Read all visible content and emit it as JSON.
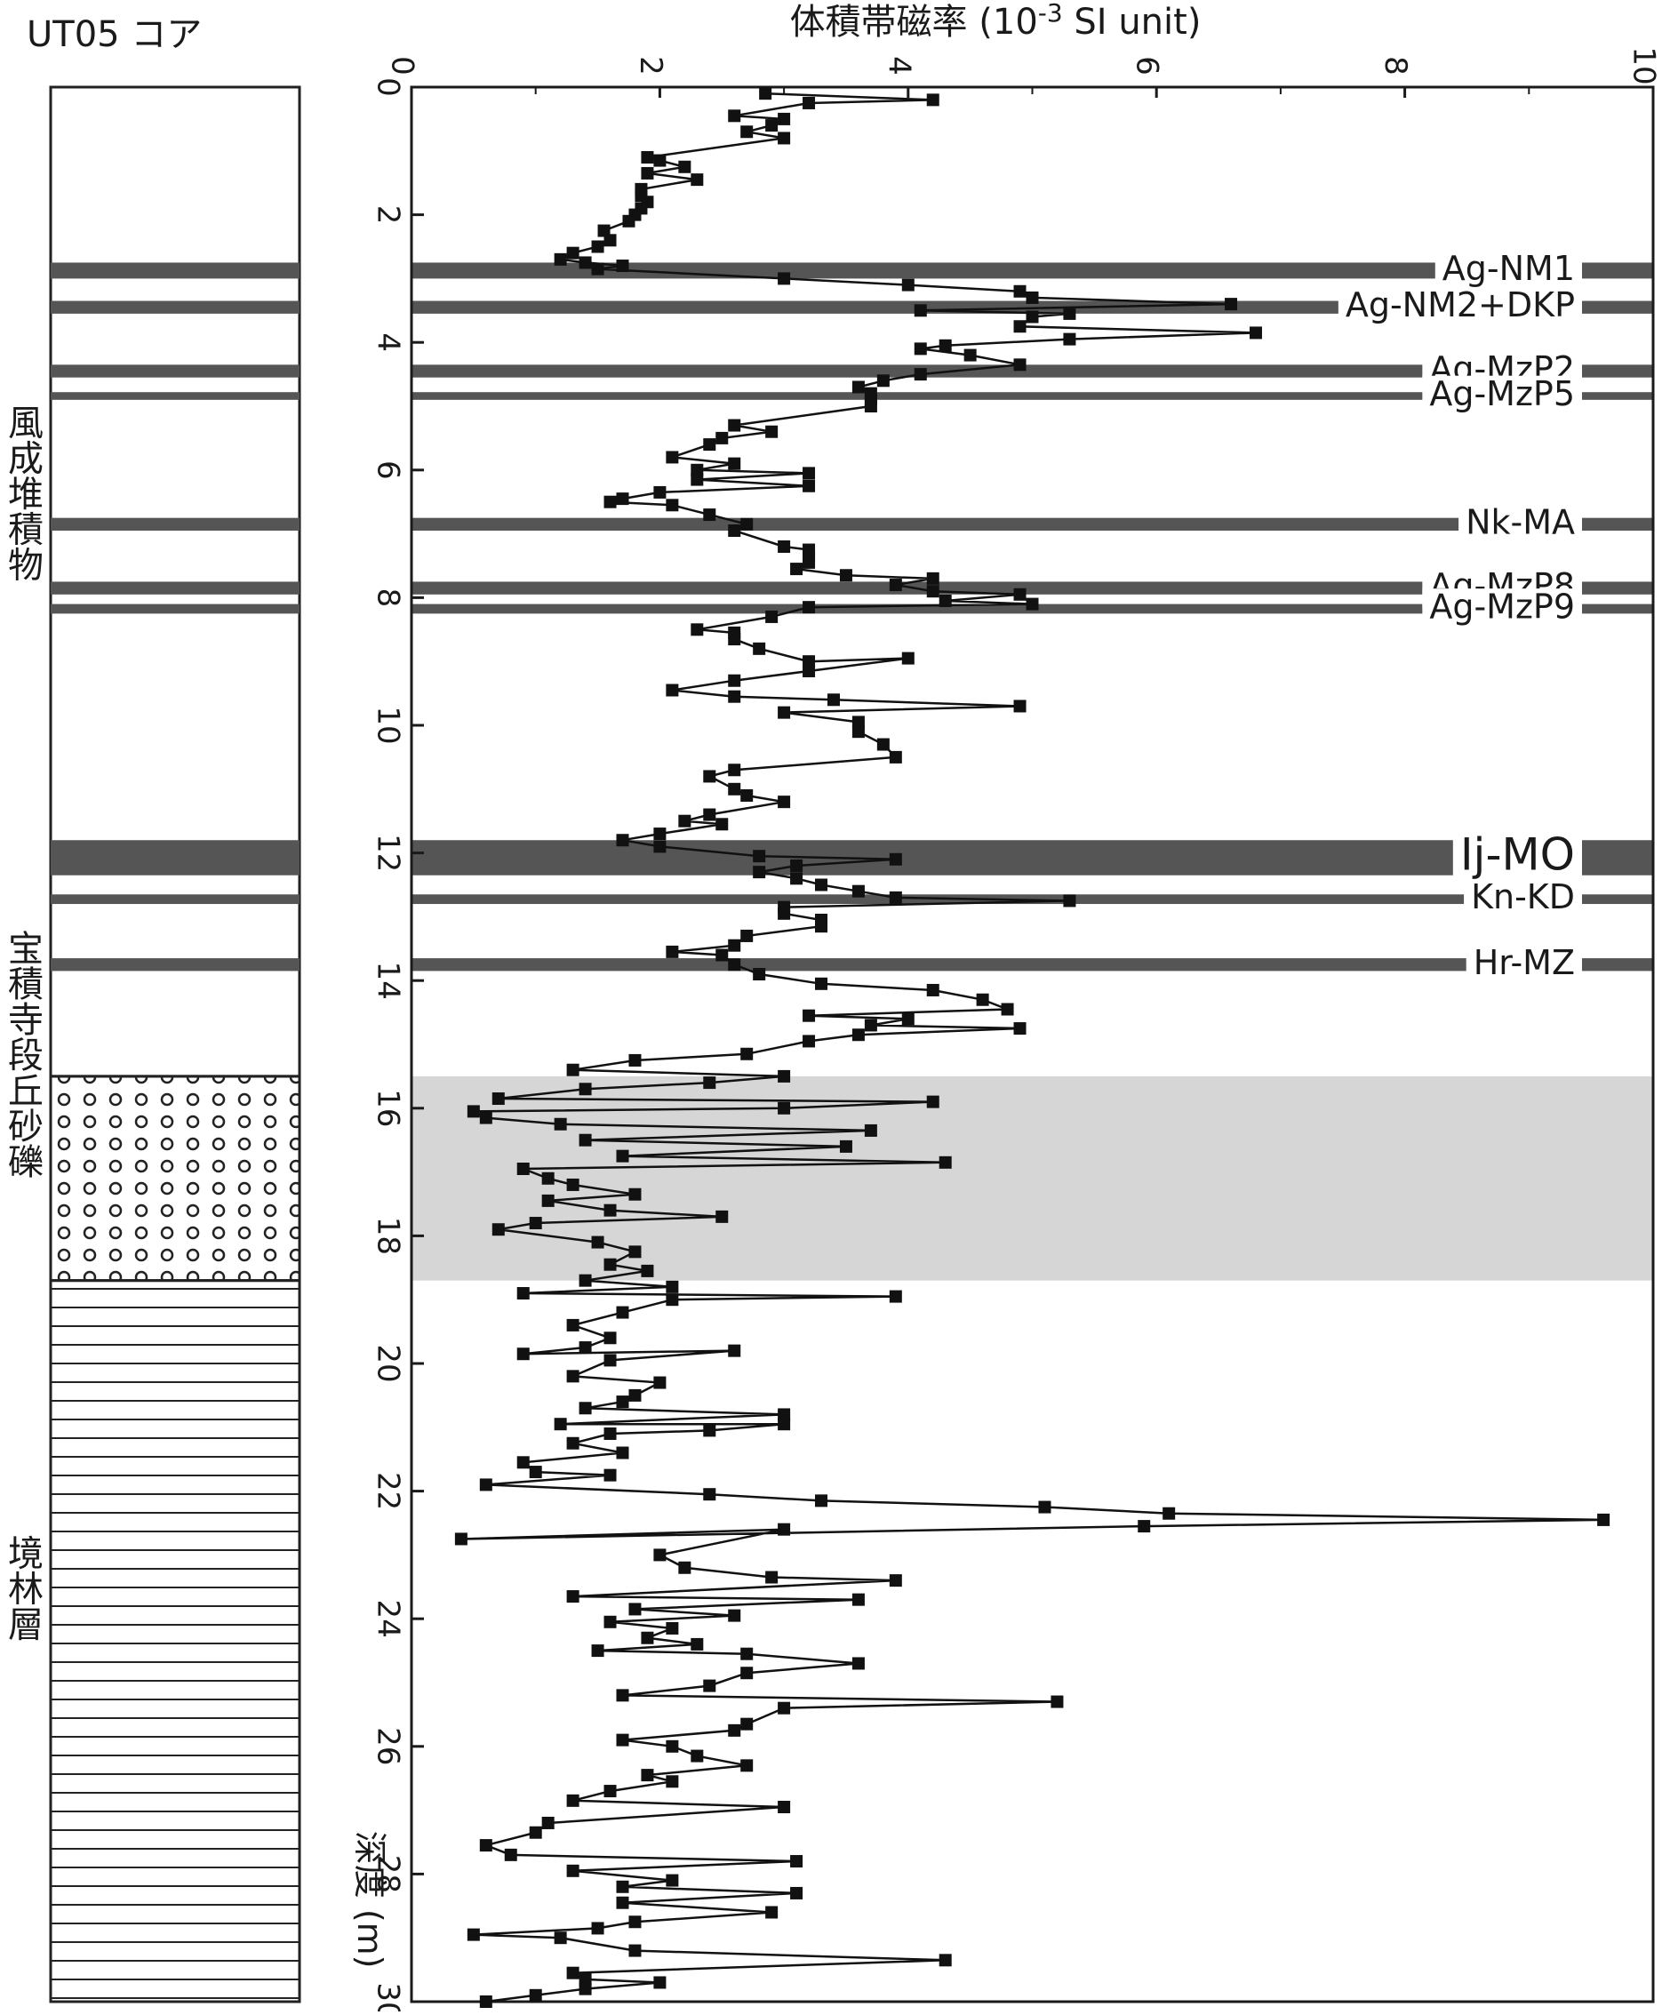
{
  "header": {
    "core_name": "UT05 コア",
    "x_axis_title": "体積帯磁率 (10",
    "x_axis_exp": "-3",
    "x_axis_unit": " SI unit)",
    "y_axis_title": "深度 (m)"
  },
  "strat_units": [
    {
      "label": "風成堆積物",
      "top": 0,
      "bottom": 15.5,
      "pattern": "blank"
    },
    {
      "label": "宝積寺段丘砂礫",
      "top": 15.5,
      "bottom": 18.7,
      "pattern": "circles"
    },
    {
      "label": "境林層",
      "top": 18.7,
      "bottom": 30,
      "pattern": "lines"
    }
  ],
  "chart_data": {
    "type": "line",
    "orientation": "depth-down",
    "x_label": "体積帯磁率 (10-3 SI unit)",
    "y_label": "深度 (m)",
    "xlim": [
      0,
      10
    ],
    "ylim": [
      0,
      30
    ],
    "x_ticks": [
      "0",
      "2",
      "4",
      "6",
      "8",
      "10"
    ],
    "y_ticks": [
      "0",
      "2",
      "4",
      "6",
      "8",
      "10",
      "12",
      "14",
      "16",
      "18",
      "20",
      "22",
      "24",
      "26",
      "28",
      "30"
    ],
    "gravel_interval": [
      15.5,
      18.7
    ],
    "tephra_layers": [
      {
        "name": "Ag-NM1",
        "top": 2.75,
        "bottom": 3.0
      },
      {
        "name": "Ag-NM2+DKP",
        "top": 3.35,
        "bottom": 3.55
      },
      {
        "name": "Ag-MzP2",
        "top": 4.35,
        "bottom": 4.55
      },
      {
        "name": "Ag-MzP5",
        "top": 4.78,
        "bottom": 4.9
      },
      {
        "name": "Nk-MA",
        "top": 6.75,
        "bottom": 6.95
      },
      {
        "name": "Ag-MzP8",
        "top": 7.75,
        "bottom": 7.95
      },
      {
        "name": "Ag-MzP9",
        "top": 8.1,
        "bottom": 8.25
      },
      {
        "name": "Ij-MO",
        "top": 11.8,
        "bottom": 12.35
      },
      {
        "name": "Kn-KD",
        "top": 12.65,
        "bottom": 12.8
      },
      {
        "name": "Hr-MZ",
        "top": 13.65,
        "bottom": 13.85
      }
    ],
    "series": [
      {
        "points": [
          [
            2.85,
            0.1
          ],
          [
            4.2,
            0.2
          ],
          [
            3.2,
            0.25
          ],
          [
            2.6,
            0.45
          ],
          [
            3.0,
            0.5
          ],
          [
            2.9,
            0.6
          ],
          [
            2.7,
            0.7
          ],
          [
            3.0,
            0.8
          ],
          [
            1.9,
            1.1
          ],
          [
            2.0,
            1.15
          ],
          [
            2.2,
            1.25
          ],
          [
            1.9,
            1.35
          ],
          [
            2.3,
            1.45
          ],
          [
            1.85,
            1.6
          ],
          [
            1.85,
            1.7
          ],
          [
            1.9,
            1.8
          ],
          [
            1.85,
            1.9
          ],
          [
            1.8,
            2.0
          ],
          [
            1.75,
            2.1
          ],
          [
            1.55,
            2.25
          ],
          [
            1.6,
            2.4
          ],
          [
            1.5,
            2.5
          ],
          [
            1.3,
            2.6
          ],
          [
            1.2,
            2.7
          ],
          [
            1.4,
            2.75
          ],
          [
            1.7,
            2.8
          ],
          [
            1.5,
            2.85
          ],
          [
            3.0,
            3.0
          ],
          [
            4.0,
            3.1
          ],
          [
            4.9,
            3.2
          ],
          [
            5.0,
            3.3
          ],
          [
            6.6,
            3.4
          ],
          [
            4.1,
            3.5
          ],
          [
            5.3,
            3.55
          ],
          [
            5.0,
            3.6
          ],
          [
            4.9,
            3.75
          ],
          [
            6.8,
            3.85
          ],
          [
            5.3,
            3.95
          ],
          [
            4.3,
            4.05
          ],
          [
            4.1,
            4.1
          ],
          [
            4.5,
            4.2
          ],
          [
            4.9,
            4.35
          ],
          [
            4.1,
            4.5
          ],
          [
            3.8,
            4.6
          ],
          [
            3.6,
            4.7
          ],
          [
            3.7,
            4.8
          ],
          [
            3.7,
            4.9
          ],
          [
            3.7,
            5.0
          ],
          [
            2.6,
            5.3
          ],
          [
            2.9,
            5.4
          ],
          [
            2.5,
            5.5
          ],
          [
            2.4,
            5.6
          ],
          [
            2.1,
            5.8
          ],
          [
            2.6,
            5.9
          ],
          [
            2.3,
            6.0
          ],
          [
            3.2,
            6.05
          ],
          [
            2.3,
            6.15
          ],
          [
            3.2,
            6.25
          ],
          [
            2.0,
            6.35
          ],
          [
            1.7,
            6.45
          ],
          [
            1.6,
            6.5
          ],
          [
            2.1,
            6.55
          ],
          [
            2.4,
            6.7
          ],
          [
            2.7,
            6.85
          ],
          [
            2.6,
            6.95
          ],
          [
            3.0,
            7.2
          ],
          [
            3.2,
            7.25
          ],
          [
            3.2,
            7.35
          ],
          [
            3.2,
            7.45
          ],
          [
            3.1,
            7.55
          ],
          [
            3.5,
            7.65
          ],
          [
            4.2,
            7.7
          ],
          [
            3.9,
            7.8
          ],
          [
            4.2,
            7.9
          ],
          [
            4.9,
            7.95
          ],
          [
            4.3,
            8.05
          ],
          [
            5.0,
            8.1
          ],
          [
            3.2,
            8.15
          ],
          [
            2.9,
            8.3
          ],
          [
            2.3,
            8.5
          ],
          [
            2.6,
            8.55
          ],
          [
            2.6,
            8.65
          ],
          [
            2.8,
            8.8
          ],
          [
            3.2,
            9.0
          ],
          [
            4.0,
            8.95
          ],
          [
            3.2,
            9.15
          ],
          [
            2.6,
            9.3
          ],
          [
            2.1,
            9.45
          ],
          [
            2.6,
            9.55
          ],
          [
            3.4,
            9.6
          ],
          [
            4.9,
            9.7
          ],
          [
            3.0,
            9.8
          ],
          [
            3.6,
            9.95
          ],
          [
            3.6,
            10.1
          ],
          [
            3.8,
            10.3
          ],
          [
            3.9,
            10.5
          ],
          [
            2.6,
            10.7
          ],
          [
            2.4,
            10.8
          ],
          [
            2.6,
            11.0
          ],
          [
            2.7,
            11.1
          ],
          [
            3.0,
            11.2
          ],
          [
            2.4,
            11.4
          ],
          [
            2.2,
            11.5
          ],
          [
            2.5,
            11.55
          ],
          [
            2.0,
            11.7
          ],
          [
            1.7,
            11.8
          ],
          [
            2.0,
            11.9
          ],
          [
            2.8,
            12.05
          ],
          [
            3.9,
            12.1
          ],
          [
            3.1,
            12.2
          ],
          [
            2.8,
            12.3
          ],
          [
            3.1,
            12.4
          ],
          [
            3.3,
            12.5
          ],
          [
            3.6,
            12.6
          ],
          [
            3.9,
            12.7
          ],
          [
            5.3,
            12.75
          ],
          [
            3.0,
            12.85
          ],
          [
            3.0,
            12.95
          ],
          [
            3.3,
            13.05
          ],
          [
            3.3,
            13.15
          ],
          [
            2.7,
            13.3
          ],
          [
            2.6,
            13.45
          ],
          [
            2.1,
            13.55
          ],
          [
            2.5,
            13.6
          ],
          [
            2.6,
            13.75
          ],
          [
            2.8,
            13.9
          ],
          [
            3.3,
            14.05
          ],
          [
            4.2,
            14.15
          ],
          [
            4.6,
            14.3
          ],
          [
            4.8,
            14.45
          ],
          [
            3.2,
            14.55
          ],
          [
            4.0,
            14.6
          ],
          [
            3.7,
            14.7
          ],
          [
            4.9,
            14.75
          ],
          [
            3.6,
            14.85
          ],
          [
            3.2,
            14.95
          ],
          [
            2.7,
            15.15
          ],
          [
            1.8,
            15.25
          ],
          [
            1.3,
            15.4
          ],
          [
            3.0,
            15.5
          ],
          [
            2.4,
            15.6
          ],
          [
            1.4,
            15.7
          ],
          [
            0.7,
            15.85
          ],
          [
            4.2,
            15.9
          ],
          [
            3.0,
            16.0
          ],
          [
            0.5,
            16.05
          ],
          [
            0.6,
            16.15
          ],
          [
            1.2,
            16.25
          ],
          [
            3.7,
            16.35
          ],
          [
            1.4,
            16.5
          ],
          [
            3.5,
            16.6
          ],
          [
            1.7,
            16.75
          ],
          [
            4.3,
            16.85
          ],
          [
            0.9,
            16.95
          ],
          [
            1.1,
            17.1
          ],
          [
            1.3,
            17.2
          ],
          [
            1.8,
            17.35
          ],
          [
            1.1,
            17.45
          ],
          [
            1.6,
            17.6
          ],
          [
            2.5,
            17.7
          ],
          [
            1.0,
            17.8
          ],
          [
            0.7,
            17.9
          ],
          [
            1.5,
            18.1
          ],
          [
            1.8,
            18.25
          ],
          [
            1.6,
            18.45
          ],
          [
            1.9,
            18.55
          ],
          [
            1.4,
            18.7
          ],
          [
            2.1,
            18.8
          ],
          [
            0.9,
            18.9
          ],
          [
            3.9,
            18.95
          ],
          [
            2.1,
            19.0
          ],
          [
            1.7,
            19.2
          ],
          [
            1.3,
            19.4
          ],
          [
            1.6,
            19.6
          ],
          [
            1.4,
            19.75
          ],
          [
            0.9,
            19.85
          ],
          [
            2.6,
            19.8
          ],
          [
            1.6,
            19.95
          ],
          [
            1.3,
            20.2
          ],
          [
            2.0,
            20.3
          ],
          [
            1.8,
            20.5
          ],
          [
            1.7,
            20.6
          ],
          [
            1.4,
            20.7
          ],
          [
            3.0,
            20.8
          ],
          [
            1.2,
            20.95
          ],
          [
            3.0,
            20.95
          ],
          [
            2.4,
            21.05
          ],
          [
            1.6,
            21.1
          ],
          [
            1.3,
            21.25
          ],
          [
            1.7,
            21.4
          ],
          [
            0.9,
            21.55
          ],
          [
            1.0,
            21.7
          ],
          [
            1.6,
            21.75
          ],
          [
            0.6,
            21.9
          ],
          [
            2.4,
            22.05
          ],
          [
            3.3,
            22.15
          ],
          [
            5.1,
            22.25
          ],
          [
            6.1,
            22.35
          ],
          [
            9.6,
            22.45
          ],
          [
            5.9,
            22.55
          ],
          [
            0.4,
            22.75
          ],
          [
            3.0,
            22.6
          ],
          [
            2.0,
            23.0
          ],
          [
            2.2,
            23.2
          ],
          [
            2.9,
            23.35
          ],
          [
            3.9,
            23.4
          ],
          [
            1.3,
            23.65
          ],
          [
            3.6,
            23.7
          ],
          [
            1.8,
            23.85
          ],
          [
            2.6,
            23.95
          ],
          [
            1.6,
            24.05
          ],
          [
            2.1,
            24.15
          ],
          [
            1.9,
            24.3
          ],
          [
            2.3,
            24.4
          ],
          [
            1.5,
            24.5
          ],
          [
            2.7,
            24.55
          ],
          [
            3.6,
            24.7
          ],
          [
            2.7,
            24.85
          ],
          [
            2.4,
            25.05
          ],
          [
            1.7,
            25.2
          ],
          [
            5.2,
            25.3
          ],
          [
            3.0,
            25.4
          ],
          [
            2.7,
            25.65
          ],
          [
            2.6,
            25.75
          ],
          [
            1.7,
            25.9
          ],
          [
            2.1,
            26.0
          ],
          [
            2.3,
            26.15
          ],
          [
            2.7,
            26.3
          ],
          [
            1.9,
            26.45
          ],
          [
            2.1,
            26.55
          ],
          [
            1.6,
            26.7
          ],
          [
            1.3,
            26.85
          ],
          [
            3.0,
            26.95
          ],
          [
            1.1,
            27.2
          ],
          [
            1.0,
            27.35
          ],
          [
            0.6,
            27.55
          ],
          [
            0.8,
            27.7
          ],
          [
            3.1,
            27.8
          ],
          [
            1.3,
            27.95
          ],
          [
            2.1,
            28.1
          ],
          [
            1.7,
            28.2
          ],
          [
            3.1,
            28.3
          ],
          [
            1.7,
            28.45
          ],
          [
            2.9,
            28.6
          ],
          [
            1.8,
            28.75
          ],
          [
            1.5,
            28.85
          ],
          [
            0.5,
            28.95
          ],
          [
            1.2,
            29.0
          ],
          [
            1.8,
            29.2
          ],
          [
            4.3,
            29.35
          ],
          [
            1.3,
            29.55
          ],
          [
            1.4,
            29.65
          ],
          [
            2.0,
            29.7
          ],
          [
            1.4,
            29.8
          ],
          [
            1.0,
            29.9
          ],
          [
            0.6,
            30.0
          ]
        ]
      }
    ]
  }
}
